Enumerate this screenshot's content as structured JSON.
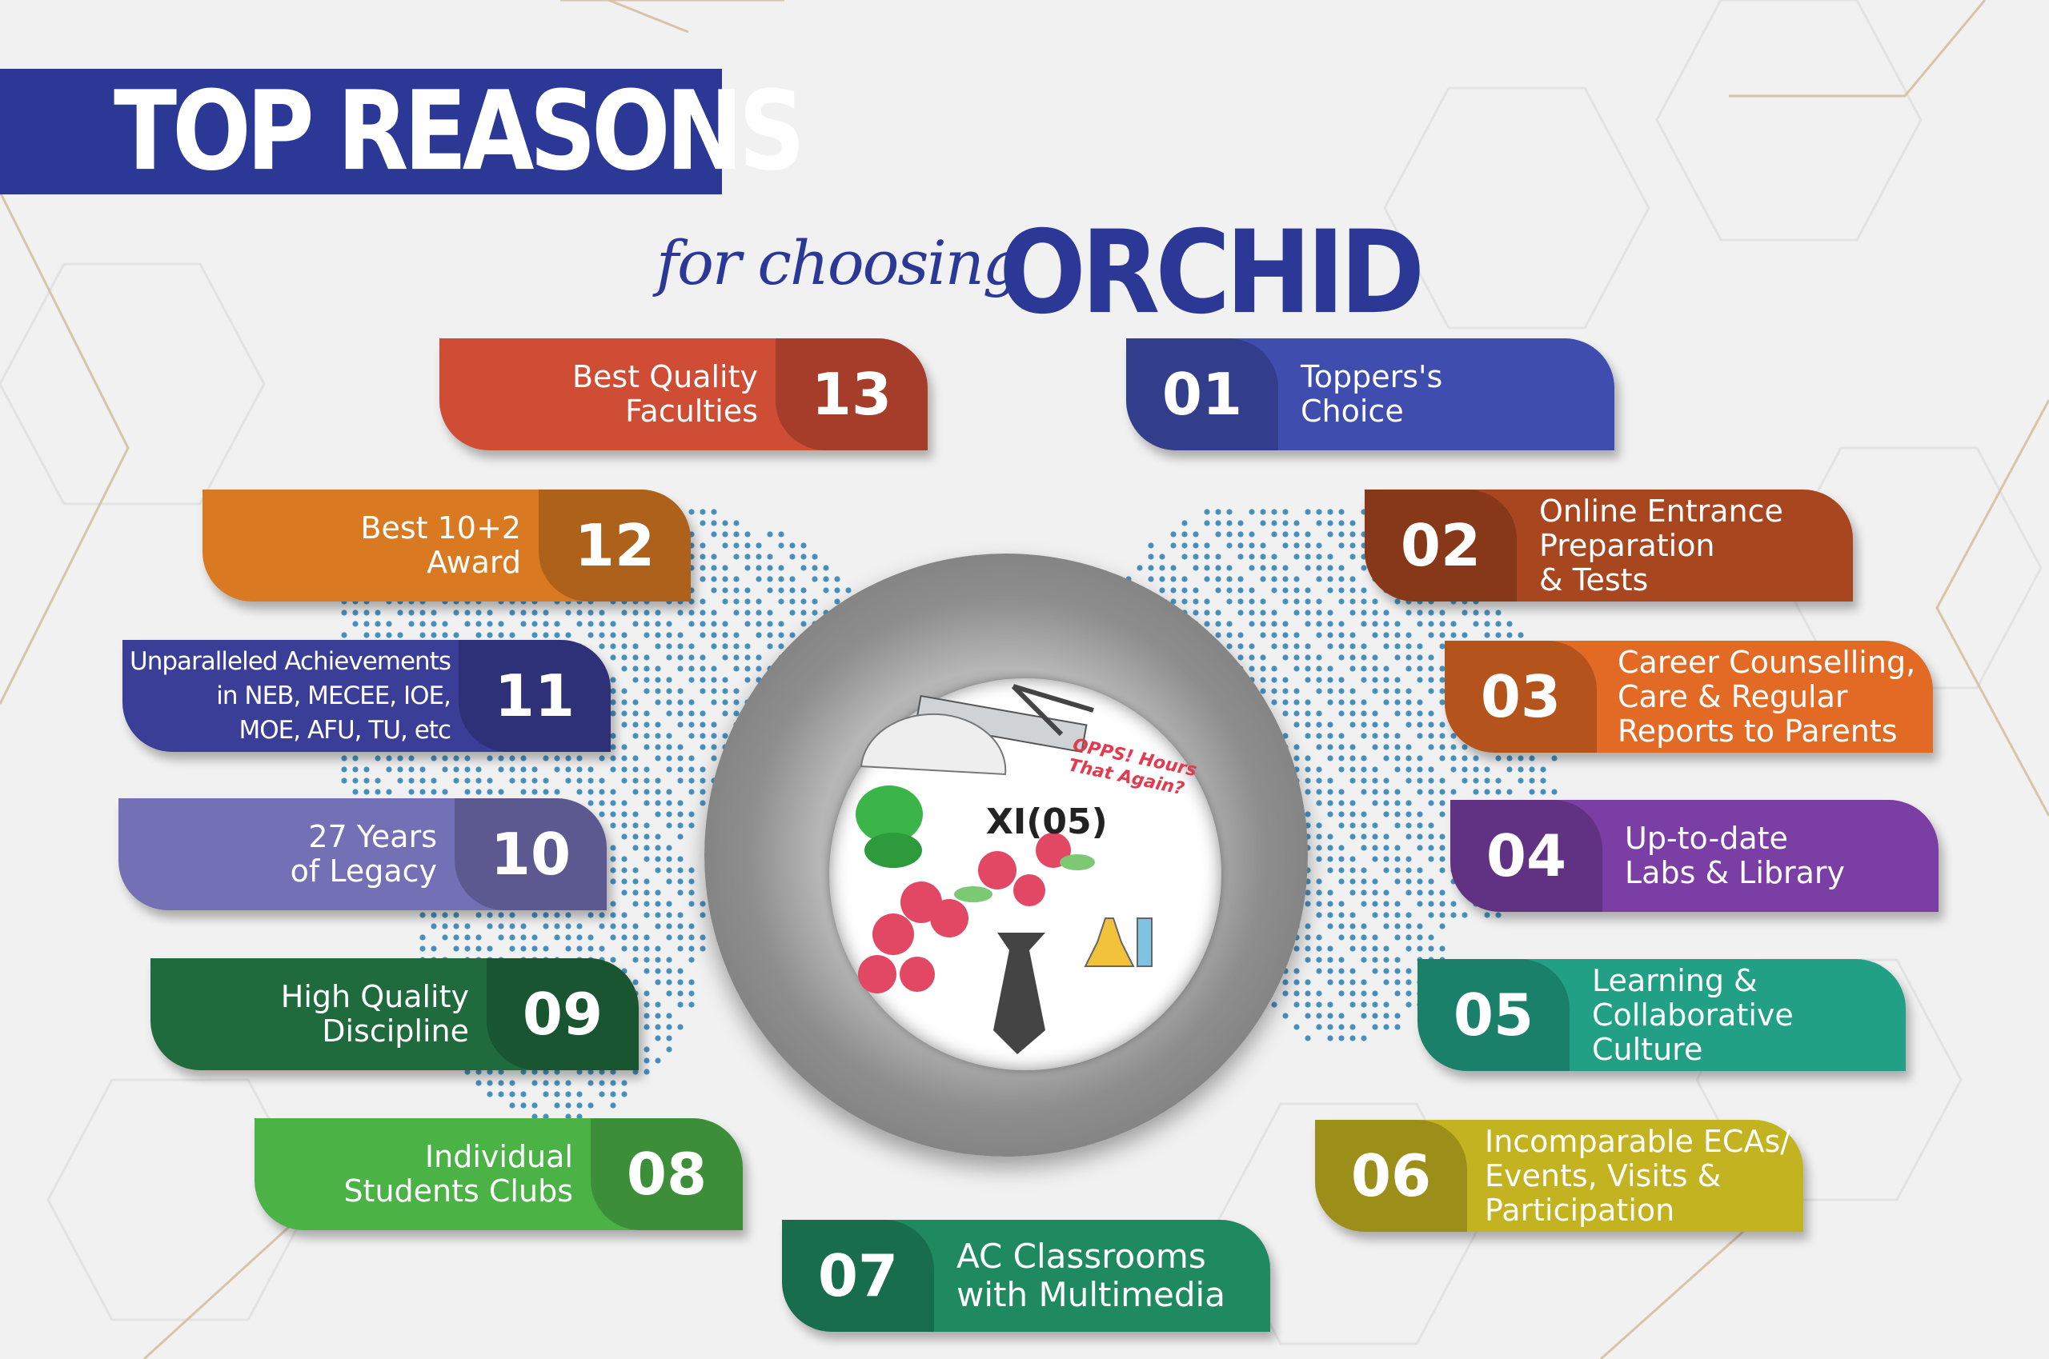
{
  "header": {
    "title": "TOP REASONS",
    "subtitle_script": "for choosing",
    "subtitle_brand": "ORCHID"
  },
  "center_image": {
    "label": "XI(05)",
    "note": "OPPS! Hours\nThat Again?"
  },
  "colors": {
    "navy": "#2b3896",
    "background": "#f1f1f1",
    "map_dots": "#2a7fb3"
  },
  "reasons": [
    {
      "number": "01",
      "label": "Toppers's\nChoice",
      "color": "#3f4eae"
    },
    {
      "number": "02",
      "label": "Online Entrance\nPreparation\n& Tests",
      "color": "#a8461f"
    },
    {
      "number": "03",
      "label": "Career Counselling,\nCare & Regular\nReports to Parents",
      "color": "#e26a24"
    },
    {
      "number": "04",
      "label": "Up-to-date\nLabs & Library",
      "color": "#7a3ea5"
    },
    {
      "number": "05",
      "label": "Learning &\nCollaborative\nCulture",
      "color": "#21a085"
    },
    {
      "number": "06",
      "label": "Incomparable ECAs/\nEvents, Visits &\nParticipation",
      "color": "#c4b320"
    },
    {
      "number": "07",
      "label": "AC Classrooms\nwith Multimedia",
      "color": "#1f8a5f"
    },
    {
      "number": "08",
      "label": "Individual\nStudents Clubs",
      "color": "#4bb246"
    },
    {
      "number": "09",
      "label": "High Quality\nDiscipline",
      "color": "#1f6b3d"
    },
    {
      "number": "10",
      "label": "27 Years\nof Legacy",
      "color": "#7470b6"
    },
    {
      "number": "11",
      "label": "Unparalleled Achievements\nin NEB, MECEE, IOE,\nMOE, AFU, TU, etc",
      "color": "#3a3e96"
    },
    {
      "number": "12",
      "label": "Best 10+2\nAward",
      "color": "#d97a22"
    },
    {
      "number": "13",
      "label": "Best Quality\nFaculties",
      "color": "#cf4d35"
    }
  ]
}
